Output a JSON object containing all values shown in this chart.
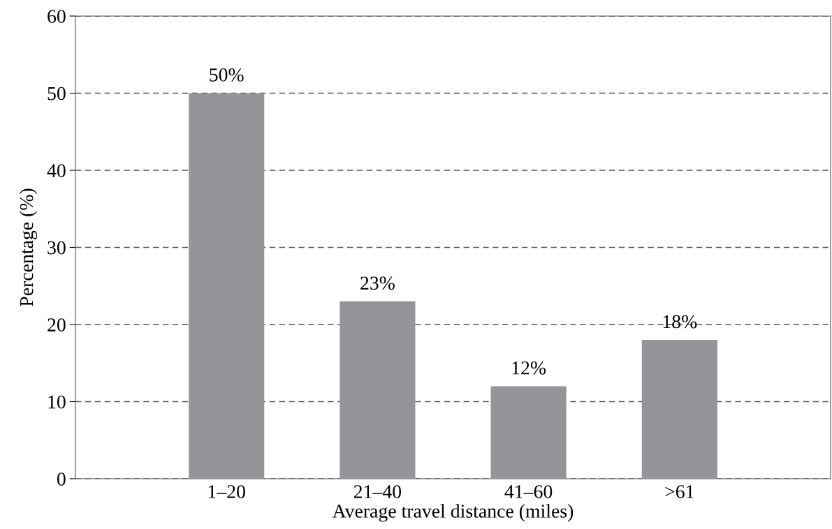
{
  "chart_data": {
    "type": "bar",
    "xlabel": "Average travel distance (miles)",
    "ylabel": "Percentage (%)",
    "categories": [
      "1–20",
      "21–40",
      "41–60",
      ">61"
    ],
    "values": [
      50,
      23,
      12,
      18
    ],
    "color": "#939598",
    "value_labels": [
      "50%",
      "23%",
      "12%",
      "18%"
    ],
    "ylim": [
      0,
      60
    ],
    "yticks": [
      0,
      10,
      20,
      30,
      40,
      50,
      60
    ],
    "grid": "y",
    "line_style": "dashed"
  }
}
